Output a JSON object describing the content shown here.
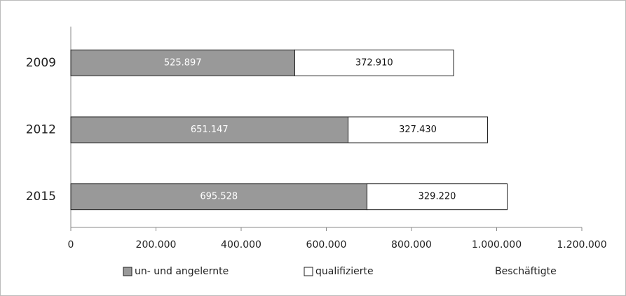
{
  "chart_data": {
    "type": "stacked_barh",
    "categories": [
      "2009",
      "2012",
      "2015"
    ],
    "series": [
      {
        "name": "un- und angelernte",
        "color": "#999999",
        "values": [
          525897,
          651147,
          695528
        ],
        "value_labels": [
          "525.897",
          "651.147",
          "695.528"
        ]
      },
      {
        "name": "qualifizierte",
        "color": "#ffffff",
        "values": [
          372910,
          327430,
          329220
        ],
        "value_labels": [
          "372.910",
          "327.430",
          "329.220"
        ]
      }
    ],
    "x_label": "Beschäftigte",
    "xlim": [
      0,
      1200000
    ],
    "xticks": [
      0,
      {
        "value": 200000,
        "label": "200.000"
      },
      {
        "value": 400000,
        "label": "400.000"
      },
      {
        "value": 600000,
        "label": "600.000"
      },
      {
        "value": 800000,
        "label": "800.000"
      },
      {
        "value": 1000000,
        "label": "1.000.000"
      },
      {
        "value": 1200000,
        "label": "1.200.000"
      }
    ],
    "legend": "bottom"
  }
}
